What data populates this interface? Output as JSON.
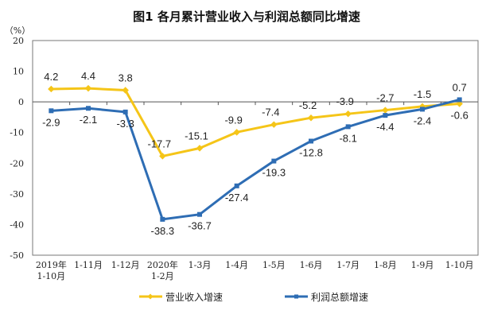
{
  "chart_data": {
    "type": "line",
    "title": "图1  各月累计营业收入与利润总额同比增速",
    "ylabel": "（%）",
    "ylim": [
      -50,
      20
    ],
    "yticks": [
      20,
      10,
      0,
      -10,
      -20,
      -30,
      -40,
      -50
    ],
    "grid": false,
    "legend_position": "bottom",
    "categories": [
      [
        "2019年",
        "1-10月"
      ],
      [
        "1-11月"
      ],
      [
        "1-12月"
      ],
      [
        "2020年",
        "1-2月"
      ],
      [
        "1-3月"
      ],
      [
        "1-4月"
      ],
      [
        "1-5月"
      ],
      [
        "1-6月"
      ],
      [
        "1-7月"
      ],
      [
        "1-8月"
      ],
      [
        "1-9月"
      ],
      [
        "1-10月"
      ]
    ],
    "series": [
      {
        "name": "营业收入增速",
        "color": "#F5C518",
        "values": [
          4.2,
          4.4,
          3.8,
          -17.7,
          -15.1,
          -9.9,
          -7.4,
          -5.2,
          -3.9,
          -2.7,
          -1.5,
          -0.6
        ]
      },
      {
        "name": "利润总额增速",
        "color": "#2E6DB4",
        "values": [
          -2.9,
          -2.1,
          -3.3,
          -38.3,
          -36.7,
          -27.4,
          -19.3,
          -12.8,
          -8.1,
          -4.4,
          -2.4,
          0.7
        ]
      }
    ]
  }
}
